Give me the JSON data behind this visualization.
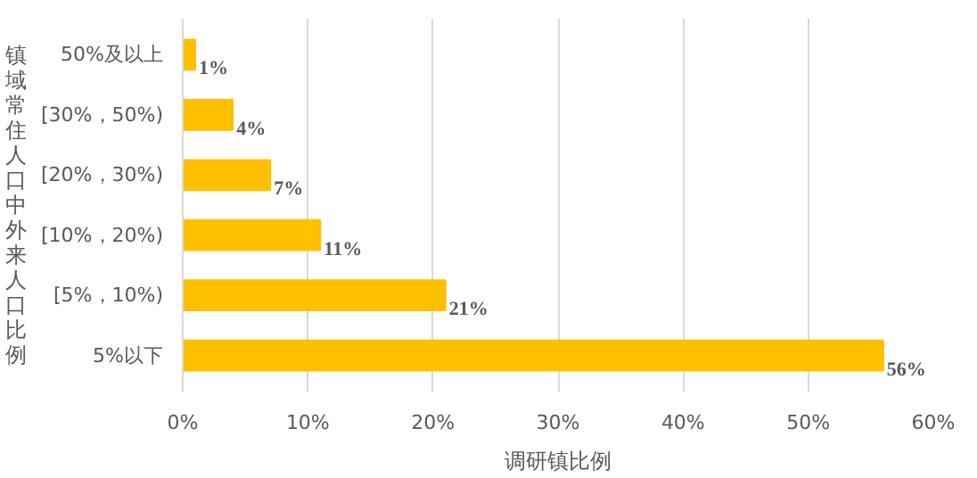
{
  "chart_data": {
    "type": "bar",
    "orientation": "horizontal",
    "categories": [
      "50%及以上",
      "[30%，50%)",
      "[20%，30%)",
      "[10%，20%)",
      "[5%，10%)",
      "5%以下"
    ],
    "values": [
      1,
      4,
      7,
      11,
      21,
      56
    ],
    "value_labels": [
      "1%",
      "4%",
      "7%",
      "11%",
      "21%",
      "56%"
    ],
    "color": "#ffc000",
    "xlim": [
      0,
      60
    ],
    "xticks": [
      {
        "value": 0,
        "label": "0%"
      },
      {
        "value": 10,
        "label": "10%"
      },
      {
        "value": 20,
        "label": "20%"
      },
      {
        "value": 30,
        "label": "30%"
      },
      {
        "value": 40,
        "label": "40%"
      },
      {
        "value": 50,
        "label": "50%"
      },
      {
        "value": 60,
        "label": "60%"
      }
    ],
    "xlabel": "调研镇比例",
    "ylabel": "镇域常住人口中外来人口比例",
    "grid": "x"
  }
}
